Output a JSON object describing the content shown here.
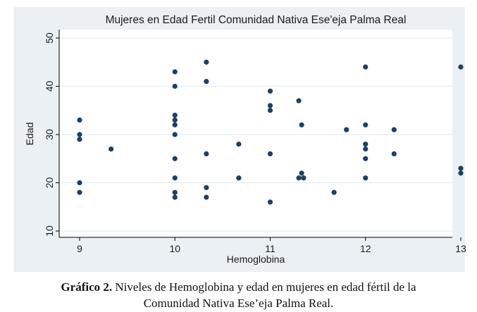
{
  "chart_data": {
    "type": "scatter",
    "title": "Mujeres en Edad Fertil Comunidad Nativa Ese'eja Palma Real",
    "xlabel": "Hemoglobina",
    "ylabel": "Edad",
    "xlim": [
      9,
      13
    ],
    "ylim": [
      10,
      50
    ],
    "xticks": [
      "9",
      "10",
      "11",
      "12",
      "13"
    ],
    "yticks": [
      "10",
      "20",
      "30",
      "40",
      "50"
    ],
    "grid": "horizontal",
    "marker_color": "#1f3f62",
    "points": [
      {
        "x": 9,
        "y": 33
      },
      {
        "x": 9,
        "y": 30
      },
      {
        "x": 9,
        "y": 29
      },
      {
        "x": 9,
        "y": 20
      },
      {
        "x": 9,
        "y": 18
      },
      {
        "x": 9.33,
        "y": 27
      },
      {
        "x": 10,
        "y": 43
      },
      {
        "x": 10,
        "y": 40
      },
      {
        "x": 10,
        "y": 34
      },
      {
        "x": 10,
        "y": 33
      },
      {
        "x": 10,
        "y": 32
      },
      {
        "x": 10,
        "y": 30
      },
      {
        "x": 10,
        "y": 25
      },
      {
        "x": 10,
        "y": 21
      },
      {
        "x": 10,
        "y": 18
      },
      {
        "x": 10,
        "y": 17
      },
      {
        "x": 10.33,
        "y": 45
      },
      {
        "x": 10.33,
        "y": 41
      },
      {
        "x": 10.33,
        "y": 26
      },
      {
        "x": 10.33,
        "y": 19
      },
      {
        "x": 10.33,
        "y": 17
      },
      {
        "x": 10.67,
        "y": 28
      },
      {
        "x": 10.67,
        "y": 21
      },
      {
        "x": 11,
        "y": 39
      },
      {
        "x": 11,
        "y": 36
      },
      {
        "x": 11,
        "y": 35
      },
      {
        "x": 11,
        "y": 26
      },
      {
        "x": 11,
        "y": 16
      },
      {
        "x": 11.3,
        "y": 37
      },
      {
        "x": 11.33,
        "y": 32
      },
      {
        "x": 11.33,
        "y": 22
      },
      {
        "x": 11.3,
        "y": 21
      },
      {
        "x": 11.35,
        "y": 21
      },
      {
        "x": 11.67,
        "y": 18
      },
      {
        "x": 11.8,
        "y": 31
      },
      {
        "x": 12,
        "y": 44
      },
      {
        "x": 12,
        "y": 32
      },
      {
        "x": 12,
        "y": 28
      },
      {
        "x": 12,
        "y": 27
      },
      {
        "x": 12,
        "y": 25
      },
      {
        "x": 12,
        "y": 21
      },
      {
        "x": 12.3,
        "y": 31
      },
      {
        "x": 12.3,
        "y": 26
      },
      {
        "x": 13,
        "y": 44
      },
      {
        "x": 13,
        "y": 23
      },
      {
        "x": 13,
        "y": 22
      }
    ]
  },
  "caption": {
    "label": "Gráfico 2.",
    "text_line1": " Niveles de Hemoglobina y edad en mujeres en edad fértil de la",
    "text_line2": "Comunidad Nativa Ese’eja Palma Real."
  }
}
